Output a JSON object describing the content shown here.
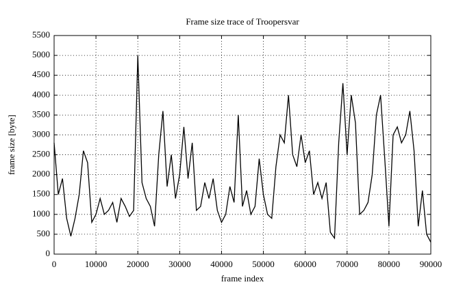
{
  "chart_data": {
    "type": "line",
    "title": "Frame size trace of Troopersvar",
    "x_label": "frame index",
    "y_label": "frame size [byte]",
    "x": [
      0,
      1000,
      2000,
      3000,
      4000,
      5000,
      6000,
      7000,
      8000,
      9000,
      10000,
      11000,
      12000,
      13000,
      14000,
      15000,
      16000,
      17000,
      18000,
      19000,
      20000,
      21000,
      22000,
      23000,
      24000,
      25000,
      26000,
      27000,
      28000,
      29000,
      30000,
      31000,
      32000,
      33000,
      34000,
      35000,
      36000,
      37000,
      38000,
      39000,
      40000,
      41000,
      42000,
      43000,
      44000,
      45000,
      46000,
      47000,
      48000,
      49000,
      50000,
      51000,
      52000,
      53000,
      54000,
      55000,
      56000,
      57000,
      58000,
      59000,
      60000,
      61000,
      62000,
      63000,
      64000,
      65000,
      66000,
      67000,
      68000,
      69000,
      70000,
      71000,
      72000,
      73000,
      74000,
      75000,
      76000,
      77000,
      78000,
      79000,
      80000,
      81000,
      82000,
      83000,
      84000,
      85000,
      86000,
      87000,
      88000,
      89000,
      90000
    ],
    "series": [
      {
        "name": "frame size",
        "color": "#000000",
        "values": [
          2800,
          1500,
          1900,
          900,
          450,
          900,
          1500,
          2600,
          2300,
          800,
          1000,
          1400,
          1000,
          1100,
          1300,
          800,
          1400,
          1200,
          950,
          1100,
          5000,
          1800,
          1400,
          1200,
          700,
          2500,
          3600,
          1700,
          2500,
          1400,
          2000,
          3200,
          1900,
          2800,
          1100,
          1200,
          1800,
          1400,
          1900,
          1100,
          800,
          1000,
          1700,
          1300,
          3500,
          1200,
          1600,
          1000,
          1200,
          2400,
          1500,
          1000,
          900,
          2200,
          3000,
          2800,
          4000,
          2500,
          2200,
          3000,
          2300,
          2600,
          1500,
          1800,
          1400,
          1800,
          550,
          400,
          2800,
          4300,
          2500,
          4000,
          3300,
          1000,
          1100,
          1300,
          2000,
          3500,
          4000,
          2400,
          700,
          3000,
          3200,
          2800,
          3000,
          3600,
          2600,
          700,
          1600,
          500,
          300
        ]
      }
    ],
    "xlim": [
      0,
      90000
    ],
    "ylim": [
      0,
      5500
    ],
    "xticks": [
      0,
      10000,
      20000,
      30000,
      40000,
      50000,
      60000,
      70000,
      80000,
      90000
    ],
    "yticks": [
      0,
      500,
      1000,
      1500,
      2000,
      2500,
      3000,
      3500,
      4000,
      4500,
      5000,
      5500
    ],
    "grid": true
  }
}
